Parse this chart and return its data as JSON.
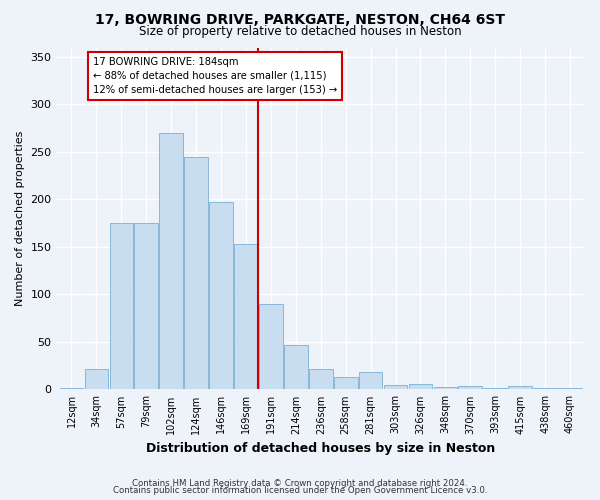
{
  "title1": "17, BOWRING DRIVE, PARKGATE, NESTON, CH64 6ST",
  "title2": "Size of property relative to detached houses in Neston",
  "xlabel": "Distribution of detached houses by size in Neston",
  "ylabel": "Number of detached properties",
  "categories": [
    "12sqm",
    "34sqm",
    "57sqm",
    "79sqm",
    "102sqm",
    "124sqm",
    "146sqm",
    "169sqm",
    "191sqm",
    "214sqm",
    "236sqm",
    "258sqm",
    "281sqm",
    "303sqm",
    "326sqm",
    "348sqm",
    "370sqm",
    "393sqm",
    "415sqm",
    "438sqm",
    "460sqm"
  ],
  "values": [
    2,
    22,
    175,
    175,
    270,
    245,
    197,
    153,
    90,
    47,
    22,
    13,
    18,
    5,
    6,
    3,
    4,
    1,
    4,
    1,
    1
  ],
  "bar_color": "#c9ddf0",
  "bar_edge_color": "#7bafd4",
  "vline_color": "#cc0000",
  "annotation_title": "17 BOWRING DRIVE: 184sqm",
  "annotation_line2": "← 88% of detached houses are smaller (1,115)",
  "annotation_line3": "12% of semi-detached houses are larger (153) →",
  "annotation_box_color": "#cc0000",
  "annotation_bg": "#ffffff",
  "background_color": "#eef2f9",
  "grid_color": "#ffffff",
  "ylim": [
    0,
    360
  ],
  "yticks": [
    0,
    50,
    100,
    150,
    200,
    250,
    300,
    350
  ],
  "footer1": "Contains HM Land Registry data © Crown copyright and database right 2024.",
  "footer2": "Contains public sector information licensed under the Open Government Licence v3.0."
}
